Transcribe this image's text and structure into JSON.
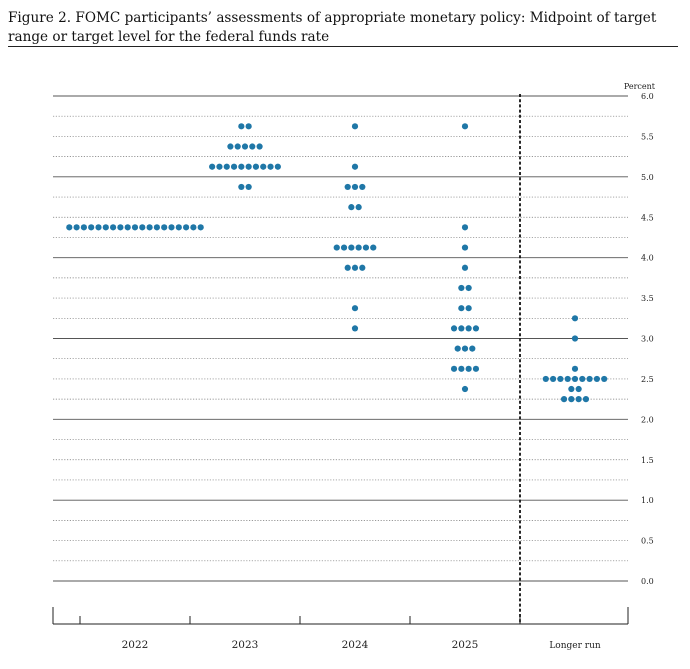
{
  "title": "Figure 2.  FOMC participants’ assessments of appropriate monetary policy: Midpoint of target range or target level for the federal funds rate",
  "chart_data": {
    "type": "scatter",
    "title": "Figure 2.  FOMC participants’ assessments of appropriate monetary policy: Midpoint of target range or target level for the federal funds rate",
    "ylabel": "Percent",
    "ylim": [
      0,
      6
    ],
    "y_ticks": [
      "0.0",
      "0.5",
      "1.0",
      "1.5",
      "2.0",
      "2.5",
      "3.0",
      "3.5",
      "4.0",
      "4.5",
      "5.0",
      "5.5",
      "6.0"
    ],
    "y_axis_side": "right",
    "categories": [
      "2022",
      "2023",
      "2024",
      "2025",
      "Longer run"
    ],
    "dots": [
      {
        "category": "2022",
        "rates": [
          {
            "y": 4.375,
            "count": 19
          }
        ]
      },
      {
        "category": "2023",
        "rates": [
          {
            "y": 5.625,
            "count": 2
          },
          {
            "y": 5.375,
            "count": 5
          },
          {
            "y": 5.125,
            "count": 10
          },
          {
            "y": 4.875,
            "count": 2
          }
        ]
      },
      {
        "category": "2024",
        "rates": [
          {
            "y": 5.625,
            "count": 1
          },
          {
            "y": 5.125,
            "count": 1
          },
          {
            "y": 4.875,
            "count": 3
          },
          {
            "y": 4.625,
            "count": 2
          },
          {
            "y": 4.125,
            "count": 6
          },
          {
            "y": 3.875,
            "count": 3
          },
          {
            "y": 3.375,
            "count": 1
          },
          {
            "y": 3.125,
            "count": 1
          }
        ]
      },
      {
        "category": "2025",
        "rates": [
          {
            "y": 5.625,
            "count": 1
          },
          {
            "y": 4.375,
            "count": 1
          },
          {
            "y": 4.125,
            "count": 1
          },
          {
            "y": 3.875,
            "count": 1
          },
          {
            "y": 3.625,
            "count": 2
          },
          {
            "y": 3.375,
            "count": 2
          },
          {
            "y": 3.125,
            "count": 4
          },
          {
            "y": 2.875,
            "count": 3
          },
          {
            "y": 2.625,
            "count": 4
          },
          {
            "y": 2.375,
            "count": 1
          }
        ]
      },
      {
        "category": "Longer run",
        "rates": [
          {
            "y": 3.25,
            "count": 1
          },
          {
            "y": 3.0,
            "count": 1
          },
          {
            "y": 2.625,
            "count": 1
          },
          {
            "y": 2.5,
            "count": 9
          },
          {
            "y": 2.375,
            "count": 2
          },
          {
            "y": 2.25,
            "count": 4
          }
        ]
      }
    ],
    "dot_color": "#1f77a7",
    "grid": "dotted",
    "separator": "dashed vertical line before Longer run"
  }
}
